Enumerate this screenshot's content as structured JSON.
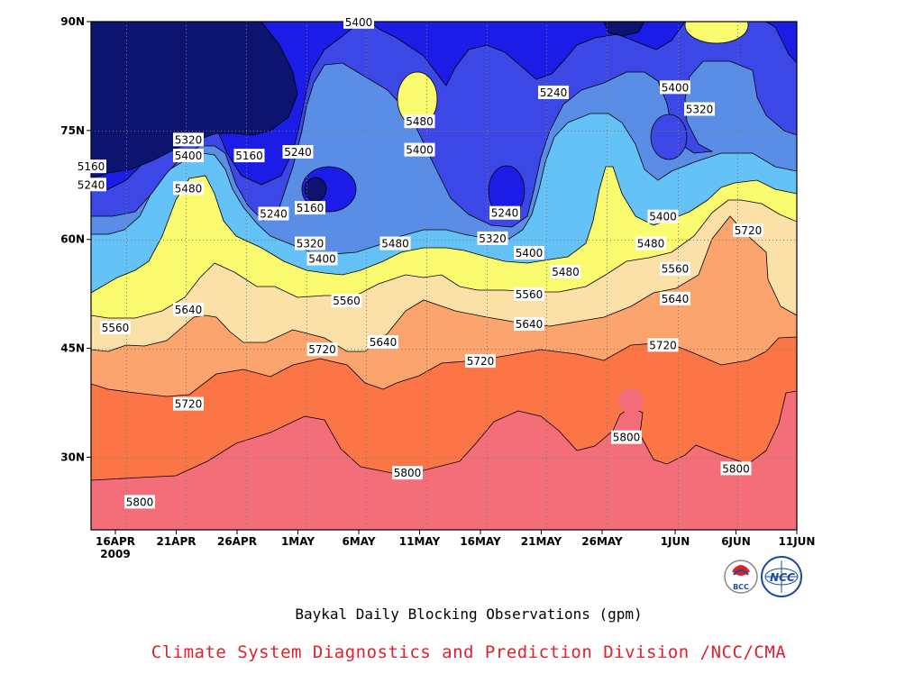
{
  "chart_data": {
    "type": "contour",
    "title": "Baykal Daily Blocking Observations (gpm)",
    "x_ticks": [
      "16APR",
      "21APR",
      "26APR",
      "1MAY",
      "6MAY",
      "11MAY",
      "16MAY",
      "21MAY",
      "26MAY",
      "1JUN",
      "6JUN",
      "11JUN"
    ],
    "x_year_label": "2009",
    "y_ticks": [
      "90N",
      "75N",
      "60N",
      "45N",
      "30N"
    ],
    "x_range": [
      "2009-04-14",
      "2009-06-11"
    ],
    "y_range": [
      20,
      90
    ],
    "levels": [
      5160,
      5240,
      5320,
      5400,
      5480,
      5560,
      5640,
      5720,
      5800
    ],
    "level_colors": {
      "below_5160": "#0c1470",
      "5160_5240": "#1b1de6",
      "5240_5320": "#3b48e6",
      "5320_5400": "#5a8ee6",
      "5400_5480": "#64c2f6",
      "5480_5560": "#fbfb70",
      "5560_5640": "#fbe0a8",
      "5640_5720": "#fba46e",
      "5720_5800": "#fb7546",
      "above_5800": "#f46e7a"
    },
    "contour_labels": [
      {
        "value": "5160",
        "date": "2009-04-14",
        "lat": 70
      },
      {
        "value": "5240",
        "date": "2009-04-14",
        "lat": 67.5
      },
      {
        "value": "5320",
        "date": "2009-04-22",
        "lat": 73.7
      },
      {
        "value": "5400",
        "date": "2009-04-22",
        "lat": 71.5
      },
      {
        "value": "5480",
        "date": "2009-04-22",
        "lat": 67
      },
      {
        "value": "5160",
        "date": "2009-04-27",
        "lat": 71.5
      },
      {
        "value": "5240",
        "date": "2009-05-01",
        "lat": 72
      },
      {
        "value": "5240",
        "date": "2009-04-29",
        "lat": 63.5
      },
      {
        "value": "5160",
        "date": "2009-05-02",
        "lat": 64.3
      },
      {
        "value": "5320",
        "date": "2009-05-02",
        "lat": 59.4
      },
      {
        "value": "5400",
        "date": "2009-05-03",
        "lat": 57.3
      },
      {
        "value": "5400",
        "date": "2009-05-06",
        "lat": 89.9
      },
      {
        "value": "5480",
        "date": "2009-05-11",
        "lat": 76.2
      },
      {
        "value": "5400",
        "date": "2009-05-11",
        "lat": 72.3
      },
      {
        "value": "5480",
        "date": "2009-05-09",
        "lat": 59.4
      },
      {
        "value": "5560",
        "date": "2009-05-05",
        "lat": 51.5
      },
      {
        "value": "5640",
        "date": "2009-04-22",
        "lat": 50.3
      },
      {
        "value": "5560",
        "date": "2009-04-16",
        "lat": 47.8
      },
      {
        "value": "5720",
        "date": "2009-05-03",
        "lat": 44.8
      },
      {
        "value": "5640",
        "date": "2009-05-08",
        "lat": 45.8
      },
      {
        "value": "5720",
        "date": "2009-04-22",
        "lat": 37.3
      },
      {
        "value": "5800",
        "date": "2009-04-18",
        "lat": 23.8
      },
      {
        "value": "5800",
        "date": "2009-05-10",
        "lat": 27.8
      },
      {
        "value": "5720",
        "date": "2009-05-16",
        "lat": 43.2
      },
      {
        "value": "5640",
        "date": "2009-05-20",
        "lat": 48.3
      },
      {
        "value": "5560",
        "date": "2009-05-20",
        "lat": 52.4
      },
      {
        "value": "5400",
        "date": "2009-05-20",
        "lat": 58.1
      },
      {
        "value": "5320",
        "date": "2009-05-17",
        "lat": 60.1
      },
      {
        "value": "5240",
        "date": "2009-05-18",
        "lat": 63.6
      },
      {
        "value": "5240",
        "date": "2009-05-22",
        "lat": 80.2
      },
      {
        "value": "5480",
        "date": "2009-05-23",
        "lat": 55.5
      },
      {
        "value": "5800",
        "date": "2009-05-28",
        "lat": 32.7
      },
      {
        "value": "5720",
        "date": "2009-05-31",
        "lat": 45.4
      },
      {
        "value": "5640",
        "date": "2009-06-01",
        "lat": 51.8
      },
      {
        "value": "5560",
        "date": "2009-06-01",
        "lat": 55.9
      },
      {
        "value": "5480",
        "date": "2009-05-30",
        "lat": 59.4
      },
      {
        "value": "5400",
        "date": "2009-05-31",
        "lat": 63.1
      },
      {
        "value": "5400",
        "date": "2009-06-01",
        "lat": 80.9
      },
      {
        "value": "5320",
        "date": "2009-06-03",
        "lat": 77.9
      },
      {
        "value": "5720",
        "date": "2009-06-07",
        "lat": 61.2
      },
      {
        "value": "5800",
        "date": "2009-06-06",
        "lat": 28.4
      }
    ],
    "grid": true
  },
  "captions": {
    "title": "Baykal Daily Blocking Observations (gpm)",
    "credit": "Climate System Diagnostics and Prediction Division /NCC/CMA"
  },
  "logos": [
    {
      "name": "bcc-logo",
      "text": "BCC",
      "color": "#1a4aa8"
    },
    {
      "name": "ncc-logo",
      "text": "NCC",
      "color": "#1a4aa8"
    }
  ]
}
